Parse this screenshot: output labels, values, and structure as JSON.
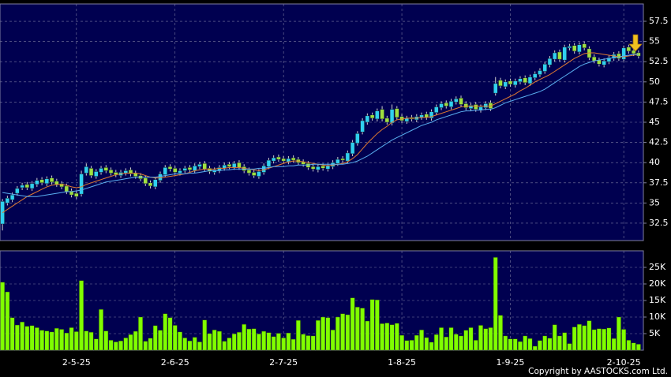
{
  "chart_data": [
    {
      "type": "candlestick",
      "open": [
        32.4,
        35.0,
        35.4,
        36.2,
        36.9,
        37.3,
        36.8,
        37.3,
        37.9,
        37.4,
        38.1,
        37.7,
        37.4,
        37.1,
        36.5,
        36.2,
        36.1,
        38.7,
        39.3,
        38.3,
        38.8,
        39.4,
        39.1,
        38.8,
        38.4,
        38.7,
        39.1,
        38.7,
        38.4,
        38.1,
        37.5,
        37.0,
        37.8,
        38.5,
        39.5,
        39.3,
        38.7,
        39.0,
        39.4,
        39.0,
        39.5,
        39.9,
        39.3,
        38.8,
        39.0,
        39.3,
        39.8,
        39.4,
        40.0,
        39.5,
        39.1,
        38.8,
        38.3,
        38.8,
        39.5,
        40.2,
        40.7,
        40.5,
        40.1,
        40.6,
        40.4,
        40.1,
        39.9,
        39.5,
        39.1,
        39.6,
        39.2,
        39.5,
        39.9,
        40.5,
        40.2,
        41.1,
        42.4,
        43.8,
        45.0,
        45.9,
        45.4,
        46.6,
        45.5,
        44.9,
        46.7,
        45.7,
        45.1,
        45.6,
        45.3,
        45.6,
        46.0,
        45.5,
        46.2,
        46.8,
        47.4,
        46.9,
        47.5,
        48.0,
        47.3,
        46.7,
        47.2,
        46.5,
        46.8,
        47.4,
        48.6,
        50.2,
        49.4,
        50.1,
        49.6,
        50.0,
        50.5,
        49.8,
        50.5,
        50.9,
        51.3,
        52.1,
        52.8,
        53.7,
        52.7,
        54.2,
        54.5,
        53.7,
        54.7,
        54.1,
        53.1,
        52.7,
        52.1,
        52.5,
        52.9,
        53.5,
        52.8,
        54.3,
        53.9,
        53.6
      ],
      "high": [
        35.5,
        35.9,
        36.3,
        37.1,
        37.5,
        37.6,
        37.7,
        38.1,
        38.2,
        38.3,
        38.4,
        38.0,
        37.7,
        37.4,
        36.8,
        36.5,
        39.0,
        39.9,
        39.6,
        39.2,
        39.6,
        39.7,
        39.4,
        39.1,
        39.1,
        39.3,
        39.4,
        39.0,
        38.7,
        38.4,
        37.8,
        38.2,
        38.9,
        39.7,
        39.8,
        39.6,
        39.3,
        39.6,
        39.7,
        39.9,
        40.1,
        40.2,
        39.6,
        39.4,
        39.7,
        40.0,
        40.1,
        40.2,
        40.3,
        39.8,
        39.4,
        39.1,
        39.2,
        39.9,
        40.6,
        40.9,
        41.0,
        40.8,
        40.8,
        40.9,
        40.7,
        40.4,
        40.2,
        39.8,
        39.8,
        39.9,
        39.9,
        40.3,
        40.7,
        40.8,
        41.5,
        42.8,
        43.9,
        45.5,
        46.1,
        46.2,
        46.7,
        47.0,
        45.8,
        47.2,
        47.0,
        46.0,
        45.8,
        45.9,
        46.0,
        46.2,
        46.3,
        46.6,
        47.2,
        47.6,
        47.7,
        47.9,
        48.2,
        48.3,
        47.6,
        47.4,
        47.5,
        47.2,
        47.6,
        47.7,
        50.6,
        50.5,
        50.3,
        50.4,
        50.4,
        50.7,
        50.8,
        50.9,
        51.3,
        51.7,
        52.5,
        53.2,
        53.9,
        54.0,
        54.6,
        54.7,
        54.8,
        54.9,
        55.0,
        54.4,
        53.4,
        53.0,
        52.9,
        53.3,
        53.7,
        53.8,
        54.5,
        54.6,
        54.2,
        53.9
      ],
      "low": [
        31.6,
        34.7,
        35.1,
        35.9,
        36.6,
        36.6,
        36.5,
        37.0,
        37.2,
        37.1,
        37.3,
        37.0,
        36.7,
        36.1,
        35.7,
        35.5,
        35.8,
        38.4,
        38.1,
        38.0,
        38.5,
        38.7,
        38.4,
        38.2,
        38.1,
        38.4,
        38.3,
        38.0,
        37.7,
        37.1,
        36.8,
        36.7,
        37.5,
        38.2,
        38.9,
        38.5,
        38.4,
        38.7,
        38.8,
        38.7,
        39.2,
        38.9,
        38.6,
        38.5,
        38.7,
        39.0,
        39.2,
        39.1,
        39.1,
        38.7,
        38.4,
        38.1,
        38.0,
        38.5,
        39.2,
        39.9,
        40.1,
        39.9,
        39.8,
        40.0,
        39.7,
        39.5,
        39.1,
        38.9,
        38.8,
        39.0,
        38.9,
        39.2,
        39.6,
        40.0,
        39.9,
        40.8,
        42.1,
        43.5,
        44.7,
        45.2,
        45.1,
        45.1,
        44.7,
        44.6,
        45.3,
        44.9,
        44.8,
        45.1,
        45.0,
        45.3,
        45.3,
        45.2,
        45.9,
        46.5,
        46.7,
        46.6,
        47.2,
        46.9,
        46.5,
        46.4,
        46.3,
        46.2,
        46.5,
        46.4,
        48.3,
        49.2,
        49.1,
        49.4,
        49.3,
        49.7,
        49.6,
        49.5,
        50.2,
        50.6,
        51.0,
        51.8,
        52.5,
        52.5,
        52.4,
        53.9,
        53.5,
        53.4,
        53.9,
        52.7,
        52.3,
        51.9,
        51.8,
        52.2,
        52.6,
        52.6,
        52.5,
        53.5,
        53.2,
        52.9
      ],
      "close": [
        35.2,
        35.6,
        36.0,
        36.8,
        37.2,
        36.9,
        37.4,
        37.8,
        37.5,
        38.0,
        37.6,
        37.3,
        37.0,
        36.4,
        36.0,
        35.8,
        38.6,
        39.5,
        38.4,
        38.9,
        39.3,
        39.0,
        38.7,
        38.5,
        38.8,
        39.0,
        38.6,
        38.3,
        38.0,
        37.4,
        37.1,
        37.9,
        38.6,
        39.4,
        39.2,
        38.8,
        39.0,
        39.3,
        39.1,
        39.6,
        39.8,
        39.2,
        38.9,
        39.1,
        39.4,
        39.7,
        39.5,
        39.9,
        39.4,
        39.0,
        38.7,
        38.4,
        38.9,
        39.6,
        40.3,
        40.6,
        40.4,
        40.2,
        40.5,
        40.3,
        40.0,
        39.8,
        39.4,
        39.2,
        39.5,
        39.3,
        39.6,
        40.0,
        40.4,
        40.3,
        41.2,
        42.5,
        43.6,
        45.2,
        45.8,
        45.5,
        46.4,
        45.4,
        45.0,
        46.6,
        45.6,
        45.2,
        45.5,
        45.4,
        45.7,
        45.9,
        45.6,
        46.3,
        46.9,
        47.3,
        47.0,
        47.6,
        47.9,
        47.2,
        46.8,
        47.1,
        46.6,
        46.9,
        47.3,
        46.7,
        49.8,
        49.5,
        50.0,
        49.7,
        50.1,
        50.4,
        49.9,
        50.6,
        51.0,
        51.4,
        52.2,
        52.9,
        53.6,
        52.8,
        54.3,
        54.4,
        53.8,
        54.6,
        54.2,
        53.0,
        52.6,
        52.2,
        52.6,
        53.0,
        53.4,
        52.9,
        54.2,
        53.8,
        53.5,
        53.2
      ],
      "up_color": "#30d0f0",
      "down_color": "#a0e040",
      "series": [
        {
          "color": "#e07a30",
          "values": [
            33.8,
            34.2,
            34.6,
            35.0,
            35.4,
            35.8,
            36.1,
            36.4,
            36.7,
            37.0,
            37.2,
            37.3,
            37.3,
            37.2,
            37.0,
            36.9,
            37.0,
            37.3,
            37.5,
            37.7,
            37.9,
            38.1,
            38.3,
            38.5,
            38.6,
            38.7,
            38.7,
            38.7,
            38.6,
            38.4,
            38.2,
            38.1,
            38.1,
            38.2,
            38.3,
            38.4,
            38.5,
            38.6,
            38.8,
            39.0,
            39.1,
            39.2,
            39.2,
            39.2,
            39.3,
            39.3,
            39.4,
            39.4,
            39.4,
            39.3,
            39.2,
            39.1,
            39.0,
            39.1,
            39.3,
            39.5,
            39.7,
            39.9,
            40.1,
            40.2,
            40.2,
            40.1,
            40.0,
            39.9,
            39.8,
            39.7,
            39.6,
            39.7,
            39.8,
            39.9,
            40.1,
            40.5,
            41.0,
            41.7,
            42.4,
            43.0,
            43.6,
            44.1,
            44.5,
            45.0,
            45.3,
            45.4,
            45.5,
            45.5,
            45.5,
            45.6,
            45.6,
            45.7,
            45.9,
            46.1,
            46.3,
            46.5,
            46.7,
            46.9,
            47.0,
            47.0,
            47.0,
            47.0,
            47.0,
            47.0,
            47.3,
            47.6,
            47.9,
            48.2,
            48.5,
            48.9,
            49.2,
            49.6,
            50.0,
            50.3,
            50.6,
            50.9,
            51.3,
            51.7,
            52.1,
            52.5,
            52.9,
            53.2,
            53.5,
            53.6,
            53.6,
            53.5,
            53.4,
            53.3,
            53.2,
            53.1,
            53.1,
            53.2,
            53.3,
            53.4
          ]
        },
        {
          "color": "#5aaef0",
          "values": [
            36.3,
            36.2,
            36.1,
            36.0,
            35.9,
            35.8,
            35.8,
            35.8,
            35.9,
            36.0,
            36.1,
            36.2,
            36.3,
            36.4,
            36.4,
            36.5,
            36.6,
            36.8,
            37.0,
            37.2,
            37.4,
            37.6,
            37.7,
            37.8,
            37.9,
            38.0,
            38.1,
            38.2,
            38.2,
            38.2,
            38.2,
            38.2,
            38.3,
            38.4,
            38.5,
            38.6,
            38.6,
            38.6,
            38.7,
            38.7,
            38.8,
            38.9,
            39.0,
            39.0,
            39.0,
            39.1,
            39.1,
            39.2,
            39.2,
            39.2,
            39.2,
            39.2,
            39.3,
            39.3,
            39.4,
            39.5,
            39.5,
            39.5,
            39.6,
            39.6,
            39.7,
            39.7,
            39.7,
            39.8,
            39.8,
            39.8,
            39.8,
            39.8,
            39.8,
            39.8,
            39.9,
            40.0,
            40.2,
            40.5,
            40.8,
            41.2,
            41.6,
            42.0,
            42.4,
            42.8,
            43.1,
            43.4,
            43.7,
            44.0,
            44.3,
            44.6,
            44.8,
            45.0,
            45.3,
            45.5,
            45.7,
            45.9,
            46.1,
            46.3,
            46.4,
            46.4,
            46.5,
            46.5,
            46.6,
            46.6,
            46.8,
            47.1,
            47.4,
            47.6,
            47.8,
            48.0,
            48.2,
            48.4,
            48.6,
            48.8,
            49.1,
            49.5,
            49.9,
            50.3,
            50.7,
            51.1,
            51.5,
            51.9,
            52.2,
            52.4,
            52.6,
            52.7,
            52.8,
            52.9,
            53.0,
            53.1,
            53.2,
            53.3,
            53.4,
            53.4
          ]
        }
      ],
      "ylim": [
        30.35,
        59.65
      ],
      "yticks": [
        32.5,
        35,
        37.5,
        40,
        42.5,
        45,
        47.5,
        50,
        52.5,
        55,
        57.5
      ],
      "grid": true
    },
    {
      "type": "bar",
      "categories": [
        null,
        null,
        null,
        null,
        null,
        null,
        null,
        null,
        null,
        null,
        null,
        null,
        null,
        null,
        null,
        "2-5-25",
        null,
        null,
        null,
        null,
        null,
        null,
        null,
        null,
        null,
        null,
        null,
        null,
        null,
        null,
        null,
        null,
        null,
        null,
        null,
        "2-6-25",
        null,
        null,
        null,
        null,
        null,
        null,
        null,
        null,
        null,
        null,
        null,
        null,
        null,
        null,
        null,
        null,
        null,
        null,
        null,
        null,
        null,
        "2-7-25",
        null,
        null,
        null,
        null,
        null,
        null,
        null,
        null,
        null,
        null,
        null,
        null,
        null,
        null,
        null,
        null,
        null,
        null,
        null,
        null,
        null,
        null,
        null,
        "1-8-25",
        null,
        null,
        null,
        null,
        null,
        null,
        null,
        null,
        null,
        null,
        null,
        null,
        null,
        null,
        null,
        null,
        null,
        null,
        null,
        null,
        null,
        "1-9-25",
        null,
        null,
        null,
        null,
        null,
        null,
        null,
        null,
        null,
        null,
        null,
        null,
        null,
        null,
        null,
        null,
        null,
        null,
        null,
        null,
        null,
        null,
        "2-10-25",
        null,
        null,
        null
      ],
      "values": [
        20500,
        17600,
        9800,
        7600,
        8500,
        7200,
        7400,
        6800,
        6000,
        5800,
        5500,
        6600,
        6300,
        5200,
        6800,
        5600,
        21000,
        5800,
        5400,
        3400,
        12300,
        5800,
        3000,
        2500,
        2800,
        3700,
        4700,
        5700,
        10000,
        2700,
        3600,
        7400,
        6000,
        11000,
        9800,
        7500,
        5500,
        3700,
        2800,
        3900,
        2500,
        9100,
        5000,
        6100,
        5700,
        2700,
        3700,
        4900,
        5400,
        7800,
        6400,
        6500,
        4900,
        5700,
        5300,
        4100,
        5100,
        3700,
        5200,
        3300,
        9000,
        4800,
        4400,
        4300,
        9000,
        10000,
        9800,
        6100,
        10000,
        11000,
        10700,
        15800,
        13000,
        12700,
        8800,
        15300,
        15200,
        8000,
        8200,
        7700,
        8100,
        4500,
        2900,
        3000,
        4500,
        6100,
        3800,
        2400,
        4700,
        6800,
        4000,
        6800,
        4800,
        4300,
        6000,
        6800,
        3000,
        7500,
        6500,
        6800,
        28000,
        10500,
        4300,
        3400,
        3400,
        2600,
        4300,
        3500,
        1200,
        2900,
        4300,
        3600,
        7700,
        4300,
        5300,
        2000,
        7000,
        7800,
        7400,
        8900,
        6200,
        6500,
        6400,
        6700,
        3500,
        10000,
        6300,
        3000,
        2200,
        1800
      ],
      "color": "#80ff00",
      "ylim": [
        0,
        30000
      ],
      "yticks": [
        {
          "value": 5000,
          "label": "5K"
        },
        {
          "value": 10000,
          "label": "10K"
        },
        {
          "value": 15000,
          "label": "15K"
        },
        {
          "value": 20000,
          "label": "20K"
        },
        {
          "value": 25000,
          "label": "25K"
        }
      ],
      "grid": true
    }
  ],
  "copyright": "Copyright by AASTOCKS.com Ltd."
}
